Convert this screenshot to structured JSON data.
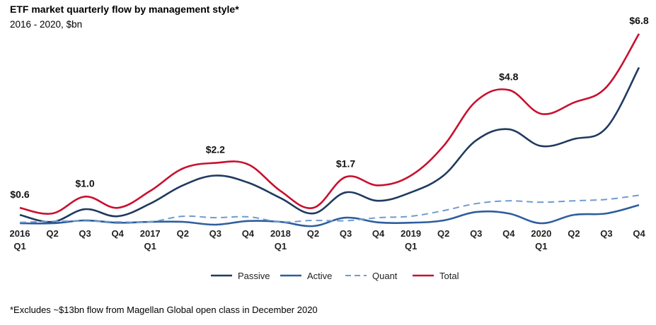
{
  "title": "ETF market quarterly flow by management style*",
  "subtitle": "2016 - 2020, $bn",
  "footnote": "*Excludes ~$13bn flow from Magellan Global open class in December 2020",
  "chart_data": {
    "type": "line",
    "title": "ETF market quarterly flow by management style*",
    "subtitle": "2016 - 2020, $bn",
    "categories": [
      "2016 Q1",
      "Q2",
      "Q3",
      "Q4",
      "2017 Q1",
      "Q2",
      "Q3",
      "Q4",
      "2018 Q1",
      "Q2",
      "Q3",
      "Q4",
      "2019 Q1",
      "Q2",
      "Q3",
      "Q4",
      "2020 Q1",
      "Q2",
      "Q3",
      "Q4"
    ],
    "tick_labels": [
      [
        "2016",
        "Q1"
      ],
      [
        "Q2"
      ],
      [
        "Q3"
      ],
      [
        "Q4"
      ],
      [
        "2017",
        "Q1"
      ],
      [
        "Q2"
      ],
      [
        "Q3"
      ],
      [
        "Q4"
      ],
      [
        "2018",
        "Q1"
      ],
      [
        "Q2"
      ],
      [
        "Q3"
      ],
      [
        "Q4"
      ],
      [
        "2019",
        "Q1"
      ],
      [
        "Q2"
      ],
      [
        "Q3"
      ],
      [
        "Q4"
      ],
      [
        "2020",
        "Q1"
      ],
      [
        "Q2"
      ],
      [
        "Q3"
      ],
      [
        "Q4"
      ]
    ],
    "ylim": [
      0,
      7.5
    ],
    "grid": false,
    "legend_position": "bottom",
    "series": [
      {
        "name": "Passive",
        "color": "#1f3a5f",
        "dash": false,
        "values": [
          0.35,
          0.1,
          0.55,
          0.3,
          0.75,
          1.4,
          1.75,
          1.5,
          0.95,
          0.4,
          1.15,
          0.85,
          1.15,
          1.75,
          3.0,
          3.4,
          2.8,
          3.05,
          3.45,
          5.6
        ]
      },
      {
        "name": "Active",
        "color": "#2e5d9e",
        "dash": false,
        "values": [
          0.05,
          0.05,
          0.15,
          0.07,
          0.1,
          0.1,
          0.0,
          0.13,
          0.1,
          -0.05,
          0.25,
          0.08,
          0.07,
          0.15,
          0.45,
          0.4,
          0.05,
          0.35,
          0.4,
          0.7
        ]
      },
      {
        "name": "Quant",
        "color": "#6f9bd1",
        "dash": true,
        "values": [
          0.08,
          0.12,
          0.13,
          0.1,
          0.1,
          0.3,
          0.25,
          0.28,
          0.1,
          0.15,
          0.14,
          0.25,
          0.3,
          0.5,
          0.75,
          0.85,
          0.8,
          0.85,
          0.9,
          1.05
        ]
      },
      {
        "name": "Total",
        "color": "#c8102e",
        "dash": false,
        "values": [
          0.6,
          0.4,
          1.0,
          0.6,
          1.2,
          2.0,
          2.2,
          2.15,
          1.2,
          0.6,
          1.7,
          1.4,
          1.75,
          2.8,
          4.4,
          4.8,
          3.95,
          4.35,
          4.9,
          6.8
        ]
      }
    ],
    "annotations": [
      {
        "series": "Total",
        "index": 0,
        "text": "$0.6"
      },
      {
        "series": "Total",
        "index": 2,
        "text": "$1.0"
      },
      {
        "series": "Total",
        "index": 6,
        "text": "$2.2"
      },
      {
        "series": "Total",
        "index": 10,
        "text": "$1.7"
      },
      {
        "series": "Total",
        "index": 15,
        "text": "$4.8"
      },
      {
        "series": "Total",
        "index": 19,
        "text": "$6.8"
      }
    ]
  }
}
